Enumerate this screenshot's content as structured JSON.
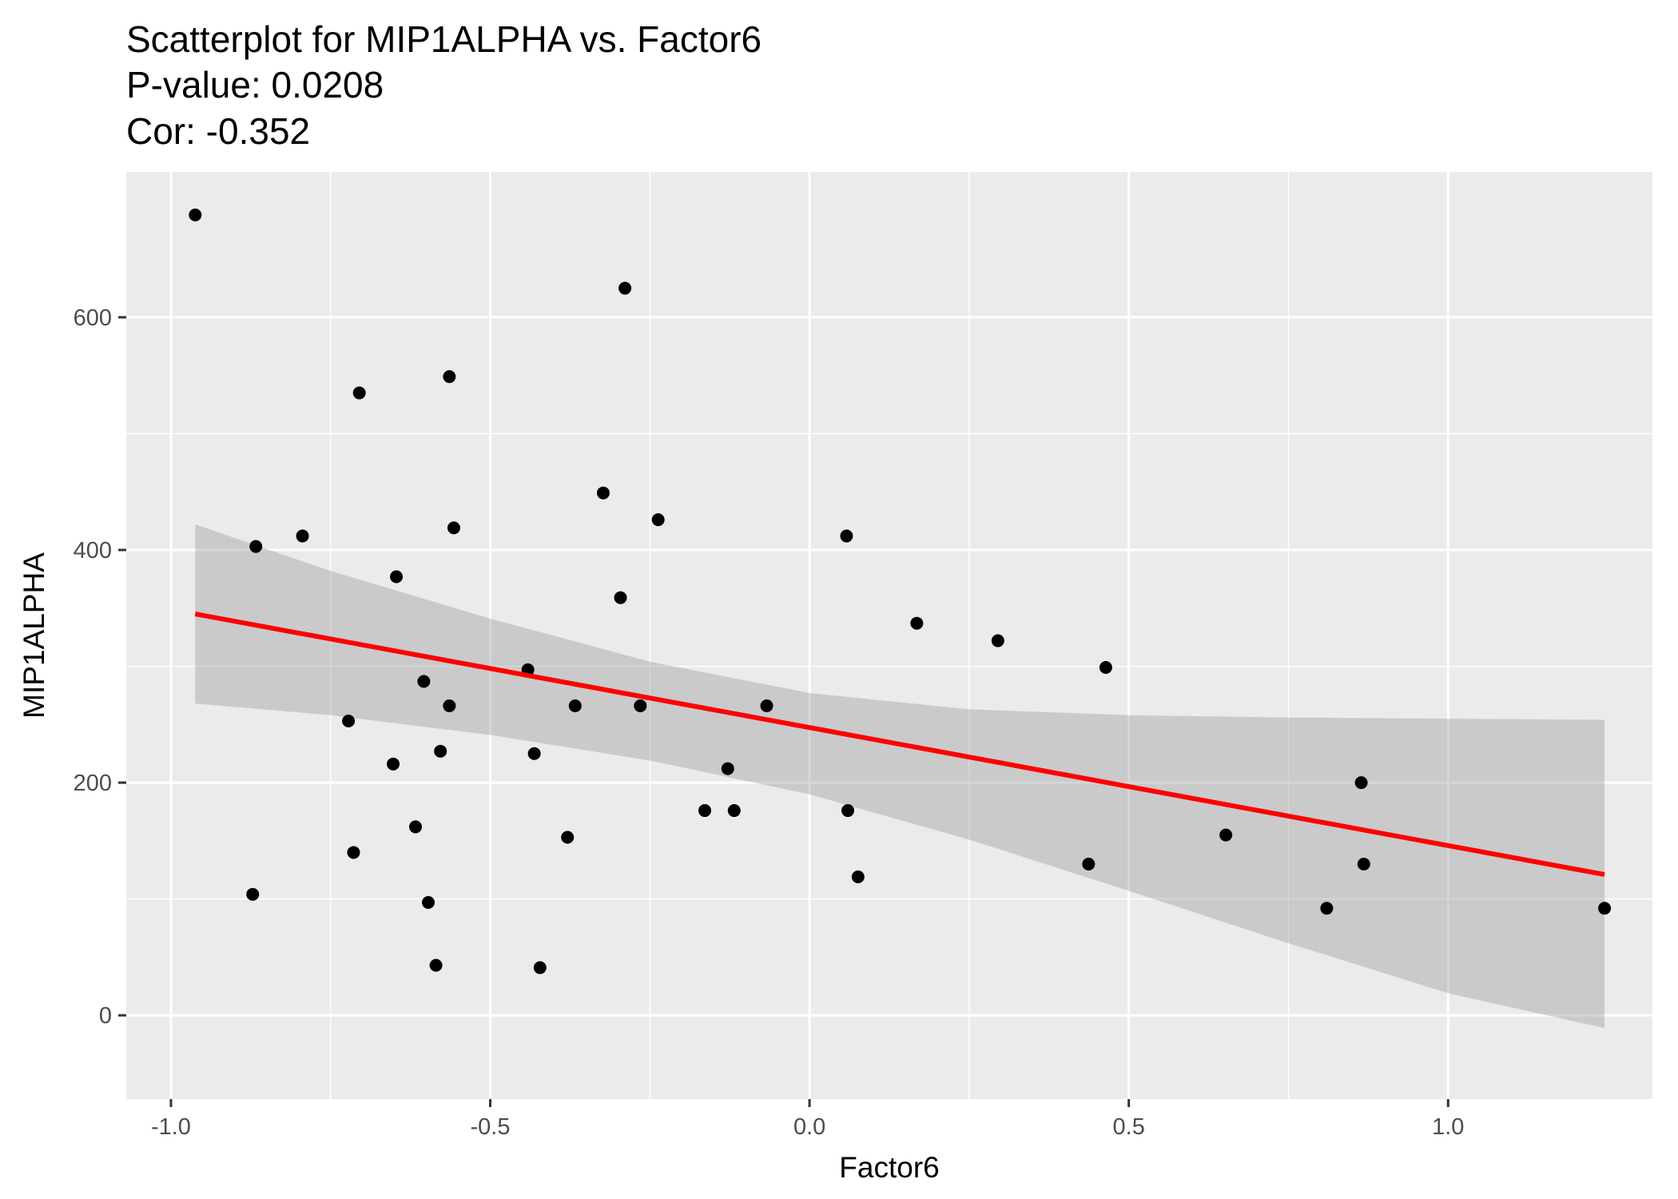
{
  "chart_data": {
    "type": "scatter",
    "title": "Scatterplot for MIP1ALPHA vs. Factor6",
    "subtitle_lines": [
      "P-value: 0.0208",
      "Cor: -0.352"
    ],
    "xlabel": "Factor6",
    "ylabel": "MIP1ALPHA",
    "xlim": [
      -1.07,
      1.32
    ],
    "ylim": [
      -72,
      725
    ],
    "x_ticks": [
      -1.0,
      -0.5,
      0.0,
      0.5,
      1.0
    ],
    "x_tick_labels": [
      "-1.0",
      "-0.5",
      "0.0",
      "0.5",
      "1.0"
    ],
    "x_minor_ticks": [
      -0.75,
      -0.25,
      0.25,
      0.75
    ],
    "y_ticks": [
      0,
      200,
      400,
      600
    ],
    "y_tick_labels": [
      "0",
      "200",
      "400",
      "600"
    ],
    "y_minor_ticks": [
      100,
      300,
      500
    ],
    "grid": true,
    "colors": {
      "panel_background": "#ebebeb",
      "grid": "#ffffff",
      "points": "#000000",
      "fit_line": "#ff0000",
      "confidence_band": "#999999"
    },
    "points": [
      {
        "x": -0.962,
        "y": 688
      },
      {
        "x": -0.867,
        "y": 403
      },
      {
        "x": -0.872,
        "y": 104
      },
      {
        "x": -0.794,
        "y": 412
      },
      {
        "x": -0.705,
        "y": 535
      },
      {
        "x": -0.722,
        "y": 253
      },
      {
        "x": -0.714,
        "y": 140
      },
      {
        "x": -0.647,
        "y": 377
      },
      {
        "x": -0.652,
        "y": 216
      },
      {
        "x": -0.617,
        "y": 162
      },
      {
        "x": -0.604,
        "y": 287
      },
      {
        "x": -0.597,
        "y": 97
      },
      {
        "x": -0.585,
        "y": 43
      },
      {
        "x": -0.578,
        "y": 227
      },
      {
        "x": -0.564,
        "y": 549
      },
      {
        "x": -0.564,
        "y": 266
      },
      {
        "x": -0.557,
        "y": 419
      },
      {
        "x": -0.441,
        "y": 297
      },
      {
        "x": -0.431,
        "y": 225
      },
      {
        "x": -0.422,
        "y": 41
      },
      {
        "x": -0.379,
        "y": 153
      },
      {
        "x": -0.367,
        "y": 266
      },
      {
        "x": -0.323,
        "y": 449
      },
      {
        "x": -0.296,
        "y": 359
      },
      {
        "x": -0.289,
        "y": 625
      },
      {
        "x": -0.265,
        "y": 266
      },
      {
        "x": -0.237,
        "y": 426
      },
      {
        "x": -0.164,
        "y": 176
      },
      {
        "x": -0.128,
        "y": 212
      },
      {
        "x": -0.118,
        "y": 176
      },
      {
        "x": -0.067,
        "y": 266
      },
      {
        "x": 0.058,
        "y": 412
      },
      {
        "x": 0.06,
        "y": 176
      },
      {
        "x": 0.076,
        "y": 119
      },
      {
        "x": 0.168,
        "y": 337
      },
      {
        "x": 0.295,
        "y": 322
      },
      {
        "x": 0.437,
        "y": 130
      },
      {
        "x": 0.464,
        "y": 299
      },
      {
        "x": 0.652,
        "y": 155
      },
      {
        "x": 0.81,
        "y": 92
      },
      {
        "x": 0.864,
        "y": 200
      },
      {
        "x": 0.868,
        "y": 130
      },
      {
        "x": 1.245,
        "y": 92
      }
    ],
    "fit_line": {
      "x": [
        -0.962,
        1.245
      ],
      "y": [
        345,
        121
      ]
    },
    "confidence_band": {
      "x": [
        -0.962,
        -0.75,
        -0.5,
        -0.25,
        0.0,
        0.25,
        0.5,
        0.75,
        1.0,
        1.245
      ],
      "upper": [
        422,
        382,
        341,
        304,
        277,
        263,
        258,
        256,
        255,
        254
      ],
      "lower": [
        268,
        258,
        241,
        219,
        190,
        151,
        107,
        62,
        19,
        -11
      ]
    }
  }
}
